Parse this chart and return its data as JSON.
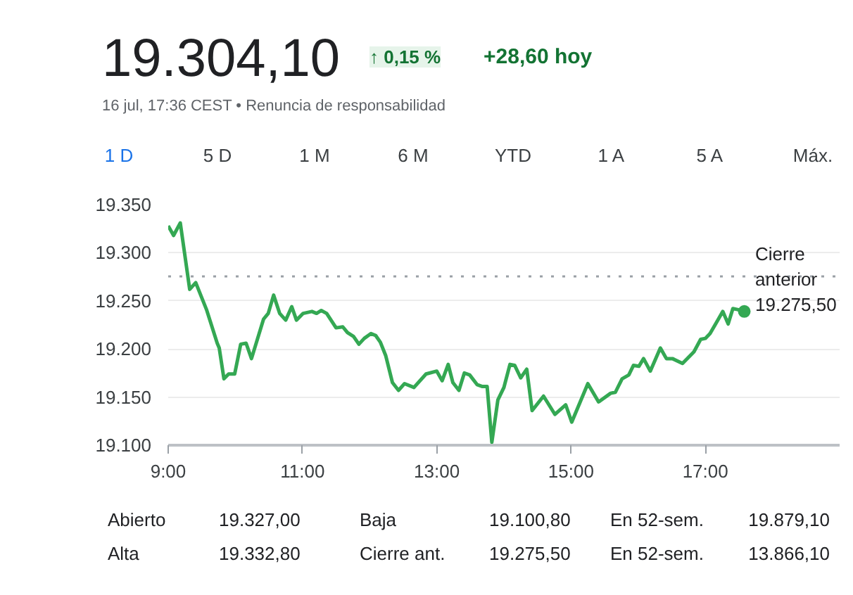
{
  "chart_data": {
    "type": "line",
    "title": "19.304,10",
    "subtitle": "16 jul, 17:36 CEST • Renuncia de responsabilidad",
    "annotations": [
      "↑ 0,15 %",
      "+28,60 hoy",
      "1 D",
      "5 D",
      "1 M",
      "6 M",
      "YTD",
      "1 A",
      "5 A",
      "Máx.",
      "Abierto",
      "19.327,00",
      "Baja",
      "19.100,80",
      "En 52-sem.",
      "19.879,10",
      "Alta",
      "19.332,80",
      "Cierre ant.",
      "19.275,50",
      "En 52-sem.",
      "13.866,10"
    ],
    "x": [
      9.0,
      9.08,
      9.18,
      9.32,
      9.41,
      9.57,
      9.73,
      9.76,
      9.83,
      9.9,
      9.99,
      10.08,
      10.16,
      10.24,
      10.42,
      10.49,
      10.57,
      10.66,
      10.75,
      10.84,
      10.91,
      11.01,
      11.14,
      11.21,
      11.28,
      11.36,
      11.5,
      11.6,
      11.67,
      11.76,
      11.84,
      11.92,
      12.02,
      12.09,
      12.16,
      12.24,
      12.34,
      12.43,
      12.52,
      12.66,
      12.84,
      13.0,
      13.08,
      13.17,
      13.24,
      13.33,
      13.41,
      13.49,
      13.6,
      13.68,
      13.75,
      13.82,
      13.91,
      14.0,
      14.09,
      14.16,
      14.25,
      14.34,
      14.42,
      14.59,
      14.76,
      14.92,
      15.01,
      15.25,
      15.41,
      15.59,
      15.66,
      15.76,
      15.86,
      15.93,
      16.01,
      16.08,
      16.18,
      16.33,
      16.42,
      16.51,
      16.66,
      16.83,
      16.93,
      17.0,
      17.07,
      17.26,
      17.34,
      17.41,
      17.48,
      17.58
    ],
    "series": [
      {
        "color": "#34a853",
        "values": [
          19328,
          19318,
          19331,
          19262,
          19269,
          19241,
          19206,
          19201,
          19169,
          19174,
          19174,
          19205,
          19206,
          19190,
          19231,
          19237,
          19256,
          19237,
          19230,
          19244,
          19230,
          19237,
          19239,
          19237,
          19240,
          19237,
          19222,
          19223,
          19217,
          19213,
          19205,
          19211,
          19216,
          19214,
          19207,
          19193,
          19165,
          19157,
          19164,
          19160,
          19174,
          19177,
          19167,
          19184,
          19165,
          19157,
          19175,
          19173,
          19163,
          19161,
          19161,
          19103,
          19147,
          19160,
          19184,
          19183,
          19170,
          19179,
          19136,
          19151,
          19132,
          19142,
          19124,
          19164,
          19145,
          19154,
          19155,
          19169,
          19173,
          19183,
          19182,
          19190,
          19177,
          19201,
          19190,
          19190,
          19185,
          19197,
          19210,
          19211,
          19216,
          19239,
          19226,
          19242,
          19241,
          19239
        ]
      }
    ],
    "xlim": [
      9,
      19
    ],
    "ylim": [
      19100,
      19350
    ],
    "xticks": [
      {
        "value": 9,
        "label": "9:00"
      },
      {
        "value": 11,
        "label": "11:00"
      },
      {
        "value": 13,
        "label": "13:00"
      },
      {
        "value": 15,
        "label": "15:00"
      },
      {
        "value": 17,
        "label": "17:00"
      }
    ],
    "yticks": [
      {
        "value": 19100,
        "label": "19.100"
      },
      {
        "value": 19150,
        "label": "19.150"
      },
      {
        "value": 19200,
        "label": "19.200"
      },
      {
        "value": 19250,
        "label": "19.250"
      },
      {
        "value": 19300,
        "label": "19.300"
      },
      {
        "value": 19350,
        "label": "19.350"
      }
    ],
    "ref_lines": [
      {
        "axis": "y",
        "value": 19275.5,
        "label": "Cierre anterior 19.275,50",
        "color": "#9aa0a6",
        "line_style": "dotted"
      }
    ],
    "grid": "y"
  }
}
